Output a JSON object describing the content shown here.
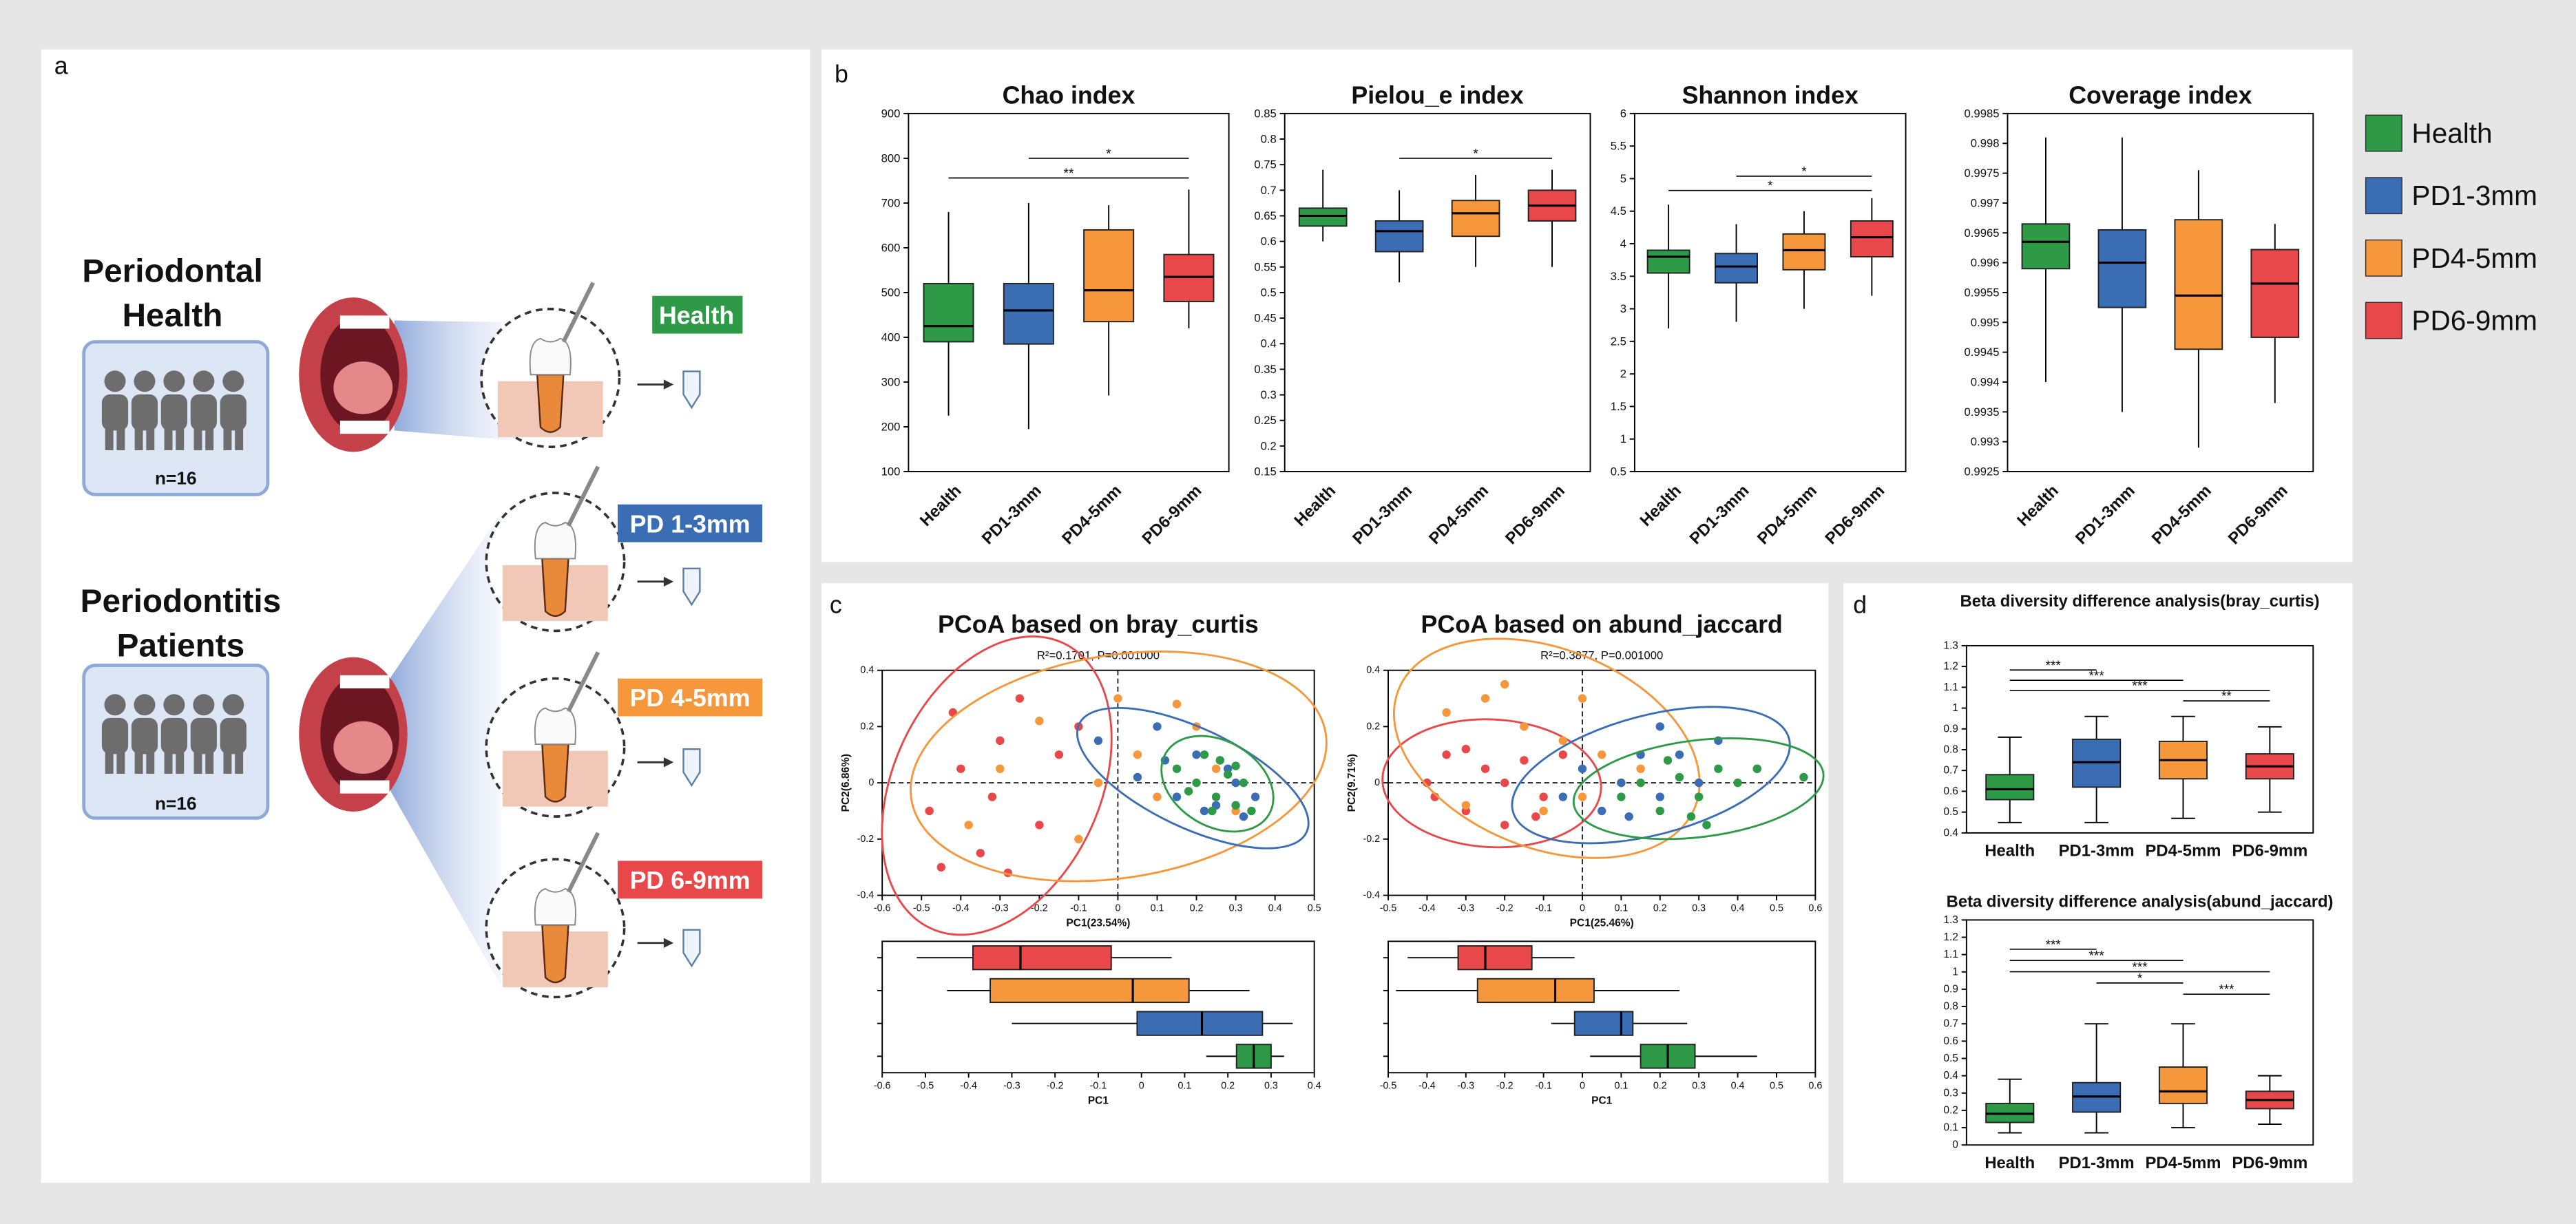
{
  "panel_labels": [
    "a",
    "b",
    "c",
    "d"
  ],
  "diagram": {
    "groups": [
      {
        "title_lines": [
          "Periodontal",
          "Health"
        ],
        "n": "n=16"
      },
      {
        "title_lines": [
          "Periodontitis",
          "Patients"
        ],
        "n": "n=16"
      }
    ],
    "sample_labels": [
      "Health",
      "PD 1-3mm",
      "PD 4-5mm",
      "PD 6-9mm"
    ]
  },
  "legend": [
    {
      "name": "Health",
      "color": "#2e9a47"
    },
    {
      "name": "PD1-3mm",
      "color": "#3b6db5"
    },
    {
      "name": "PD4-5mm",
      "color": "#f5973a"
    },
    {
      "name": "PD6-9mm",
      "color": "#e9484a"
    }
  ],
  "chart_data": [
    {
      "type": "box",
      "title": "Chao index",
      "categories": [
        "Health",
        "PD1-3mm",
        "PD4-5mm",
        "PD6-9mm"
      ],
      "colors": [
        "#2e9a47",
        "#3b6db5",
        "#f5973a",
        "#e9484a"
      ],
      "boxes": [
        {
          "min": 225,
          "q1": 390,
          "median": 425,
          "q3": 520,
          "max": 680
        },
        {
          "min": 195,
          "q1": 385,
          "median": 460,
          "q3": 520,
          "max": 700
        },
        {
          "min": 270,
          "q1": 435,
          "median": 505,
          "q3": 640,
          "max": 695
        },
        {
          "min": 420,
          "q1": 480,
          "median": 535,
          "q3": 585,
          "max": 730
        }
      ],
      "ylim": [
        100,
        900
      ],
      "yticks": [
        100,
        200,
        300,
        400,
        500,
        600,
        700,
        800,
        900
      ],
      "annotations": [
        {
          "text": "*",
          "from": 1,
          "to": 3
        },
        {
          "text": "**",
          "from": 0,
          "to": 3
        }
      ]
    },
    {
      "type": "box",
      "title": "Pielou_e index",
      "categories": [
        "Health",
        "PD1-3mm",
        "PD4-5mm",
        "PD6-9mm"
      ],
      "colors": [
        "#2e9a47",
        "#3b6db5",
        "#f5973a",
        "#e9484a"
      ],
      "boxes": [
        {
          "min": 0.6,
          "q1": 0.63,
          "median": 0.65,
          "q3": 0.665,
          "max": 0.74
        },
        {
          "min": 0.52,
          "q1": 0.58,
          "median": 0.62,
          "q3": 0.64,
          "max": 0.7
        },
        {
          "min": 0.55,
          "q1": 0.61,
          "median": 0.655,
          "q3": 0.68,
          "max": 0.73
        },
        {
          "min": 0.55,
          "q1": 0.64,
          "median": 0.67,
          "q3": 0.7,
          "max": 0.74
        }
      ],
      "ylim": [
        0.15,
        0.85
      ],
      "yticks": [
        0.15,
        0.2,
        0.25,
        0.3,
        0.35,
        0.4,
        0.45,
        0.5,
        0.55,
        0.6,
        0.65,
        0.7,
        0.75,
        0.8,
        0.85
      ],
      "annotations": [
        {
          "text": "*",
          "from": 1,
          "to": 3
        }
      ]
    },
    {
      "type": "box",
      "title": "Shannon index",
      "categories": [
        "Health",
        "PD1-3mm",
        "PD4-5mm",
        "PD6-9mm"
      ],
      "colors": [
        "#2e9a47",
        "#3b6db5",
        "#f5973a",
        "#e9484a"
      ],
      "boxes": [
        {
          "min": 2.7,
          "q1": 3.55,
          "median": 3.8,
          "q3": 3.9,
          "max": 4.6
        },
        {
          "min": 2.8,
          "q1": 3.4,
          "median": 3.65,
          "q3": 3.85,
          "max": 4.3
        },
        {
          "min": 3,
          "q1": 3.6,
          "median": 3.9,
          "q3": 4.15,
          "max": 4.5
        },
        {
          "min": 3.2,
          "q1": 3.8,
          "median": 4.1,
          "q3": 4.35,
          "max": 4.7
        }
      ],
      "ylim": [
        0.5,
        6
      ],
      "yticks": [
        0.5,
        1,
        1.5,
        2,
        2.5,
        3,
        3.5,
        4,
        4.5,
        5,
        5.5,
        6
      ],
      "annotations": [
        {
          "text": "*",
          "from": 1,
          "to": 3
        },
        {
          "text": "*",
          "from": 0,
          "to": 3
        }
      ]
    },
    {
      "type": "box",
      "title": "Coverage index",
      "categories": [
        "Health",
        "PD1-3mm",
        "PD4-5mm",
        "PD6-9mm"
      ],
      "colors": [
        "#2e9a47",
        "#3b6db5",
        "#f5973a",
        "#e9484a"
      ],
      "boxes": [
        {
          "min": 0.994,
          "q1": 0.9959,
          "median": 0.99635,
          "q3": 0.99665,
          "max": 0.9981
        },
        {
          "min": 0.9935,
          "q1": 0.99525,
          "median": 0.996,
          "q3": 0.99655,
          "max": 0.9981
        },
        {
          "min": 0.9929,
          "q1": 0.99455,
          "median": 0.99545,
          "q3": 0.99672,
          "max": 0.99755
        },
        {
          "min": 0.99365,
          "q1": 0.99475,
          "median": 0.99565,
          "q3": 0.99622,
          "max": 0.99665
        }
      ],
      "ylim": [
        0.9925,
        0.9985
      ],
      "yticks": [
        0.9925,
        0.993,
        0.9935,
        0.994,
        0.9945,
        0.995,
        0.9955,
        0.996,
        0.9965,
        0.997,
        0.9975,
        0.998,
        0.9985
      ],
      "annotations": []
    },
    {
      "type": "scatter",
      "title": "PCoA based on bray_curtis",
      "subtitle": "R²=0.1701, P=0.001000",
      "xlabel": "PC1(23.54%)",
      "ylabel": "PC2(6.86%)",
      "xlim": [
        -0.6,
        0.5
      ],
      "xticks": [
        -0.6,
        -0.5,
        -0.4,
        -0.3,
        -0.2,
        -0.1,
        0,
        0.1,
        0.2,
        0.3,
        0.4,
        0.5
      ],
      "ylim": [
        -0.4,
        0.4
      ],
      "yticks": [
        -0.4,
        -0.2,
        0,
        0.2,
        0.4
      ],
      "series": [
        {
          "color": "#e9484a",
          "x": [
            -0.48,
            -0.42,
            -0.4,
            -0.35,
            -0.32,
            -0.3,
            -0.28,
            -0.25,
            -0.2,
            -0.15,
            -0.45,
            -0.1
          ],
          "y": [
            -0.1,
            0.25,
            0.05,
            -0.25,
            -0.05,
            0.15,
            -0.32,
            0.3,
            -0.15,
            0.1,
            -0.3,
            0.2
          ]
        },
        {
          "color": "#f5973a",
          "x": [
            -0.38,
            -0.3,
            -0.2,
            -0.1,
            0,
            0.05,
            0.1,
            0.2,
            0.25,
            0.3,
            -0.05,
            0.15
          ],
          "y": [
            -0.15,
            0.05,
            0.22,
            -0.2,
            0.3,
            0.1,
            -0.05,
            0.2,
            0.05,
            -0.1,
            0,
            0.28
          ]
        },
        {
          "color": "#3b6db5",
          "x": [
            -0.05,
            0.05,
            0.1,
            0.15,
            0.2,
            0.25,
            0.3,
            0.32,
            0.28,
            0.12,
            0.22,
            0.35
          ],
          "y": [
            0.15,
            0.02,
            0.2,
            -0.05,
            0.1,
            -0.08,
            0,
            -0.12,
            0.05,
            0.08,
            -0.1,
            -0.05
          ]
        },
        {
          "color": "#2e9a47",
          "x": [
            0.15,
            0.2,
            0.22,
            0.25,
            0.28,
            0.3,
            0.32,
            0.26,
            0.18,
            0.34,
            0.3,
            0.24
          ],
          "y": [
            0.05,
            0,
            0.1,
            -0.05,
            0.03,
            -0.08,
            0,
            0.08,
            -0.03,
            -0.1,
            0.06,
            -0.1
          ]
        }
      ]
    },
    {
      "type": "hbox",
      "xlabel": "PC1",
      "xlim": [
        -0.6,
        0.4
      ],
      "xticks": [
        -0.6,
        -0.5,
        -0.4,
        -0.3,
        -0.2,
        -0.1,
        0,
        0.1,
        0.2,
        0.3,
        0.4
      ],
      "colors": [
        "#e9484a",
        "#f5973a",
        "#3b6db5",
        "#2e9a47"
      ],
      "boxes": [
        {
          "min": -0.52,
          "q1": -0.39,
          "median": -0.28,
          "q3": -0.07,
          "max": 0.07
        },
        {
          "min": -0.45,
          "q1": -0.35,
          "median": -0.02,
          "q3": 0.11,
          "max": 0.25
        },
        {
          "min": -0.3,
          "q1": -0.01,
          "median": 0.14,
          "q3": 0.28,
          "max": 0.35
        },
        {
          "min": 0.15,
          "q1": 0.22,
          "median": 0.26,
          "q3": 0.3,
          "max": 0.33
        }
      ]
    },
    {
      "type": "scatter",
      "title": "PCoA based on abund_jaccard",
      "subtitle": "R²=0.3877, P=0.001000",
      "xlabel": "PC1(25.46%)",
      "ylabel": "PC2(9.71%)",
      "xlim": [
        -0.5,
        0.6
      ],
      "xticks": [
        -0.5,
        -0.4,
        -0.3,
        -0.2,
        -0.1,
        0,
        0.1,
        0.2,
        0.3,
        0.4,
        0.5,
        0.6
      ],
      "ylim": [
        -0.4,
        0.4
      ],
      "yticks": [
        -0.4,
        -0.2,
        0,
        0.2,
        0.4
      ],
      "series": [
        {
          "color": "#e9484a",
          "x": [
            -0.4,
            -0.35,
            -0.3,
            -0.25,
            -0.2,
            -0.15,
            -0.1,
            -0.3,
            -0.05,
            -0.2,
            -0.38,
            -0.12
          ],
          "y": [
            0,
            0.1,
            -0.1,
            0.05,
            -0.15,
            0.08,
            -0.05,
            0.12,
            0.1,
            0,
            -0.05,
            -0.12
          ]
        },
        {
          "color": "#f5973a",
          "x": [
            -0.35,
            -0.25,
            -0.15,
            -0.05,
            0,
            0.05,
            -0.1,
            0.1,
            -0.2,
            0.15,
            -0.3,
            0
          ],
          "y": [
            0.25,
            0.3,
            0.2,
            0.15,
            -0.05,
            0.1,
            -0.1,
            0,
            0.35,
            0.05,
            -0.08,
            0.3
          ]
        },
        {
          "color": "#3b6db5",
          "x": [
            -0.05,
            0,
            0.05,
            0.1,
            0.15,
            0.2,
            0.25,
            0.3,
            0.35,
            0.45,
            0.12,
            0.2
          ],
          "y": [
            -0.05,
            0.05,
            -0.1,
            0,
            0.1,
            -0.05,
            0.1,
            0,
            0.15,
            0.05,
            -0.12,
            0.2
          ]
        },
        {
          "color": "#2e9a47",
          "x": [
            0.1,
            0.15,
            0.2,
            0.25,
            0.3,
            0.35,
            0.4,
            0.28,
            0.45,
            0.57,
            0.22,
            0.32
          ],
          "y": [
            -0.05,
            0,
            -0.1,
            0.02,
            -0.05,
            0.05,
            0,
            -0.12,
            0.05,
            0.02,
            0.08,
            -0.15
          ]
        }
      ]
    },
    {
      "type": "hbox",
      "xlabel": "PC1",
      "xlim": [
        -0.5,
        0.6
      ],
      "xticks": [
        -0.5,
        -0.4,
        -0.3,
        -0.2,
        -0.1,
        0,
        0.1,
        0.2,
        0.3,
        0.4,
        0.5,
        0.6
      ],
      "colors": [
        "#e9484a",
        "#f5973a",
        "#3b6db5",
        "#2e9a47"
      ],
      "boxes": [
        {
          "min": -0.45,
          "q1": -0.32,
          "median": -0.25,
          "q3": -0.13,
          "max": -0.02
        },
        {
          "min": -0.48,
          "q1": -0.27,
          "median": -0.07,
          "q3": 0.03,
          "max": 0.25
        },
        {
          "min": -0.08,
          "q1": -0.02,
          "median": 0.1,
          "q3": 0.13,
          "max": 0.27
        },
        {
          "min": 0.02,
          "q1": 0.15,
          "median": 0.22,
          "q3": 0.29,
          "max": 0.45
        }
      ]
    },
    {
      "type": "box",
      "title": "Beta diversity difference analysis(bray_curtis)",
      "categories": [
        "Health",
        "PD1-3mm",
        "PD4-5mm",
        "PD6-9mm"
      ],
      "colors": [
        "#2e9a47",
        "#3b6db5",
        "#f5973a",
        "#e9484a"
      ],
      "boxes": [
        {
          "min": 0.45,
          "q1": 0.56,
          "median": 0.61,
          "q3": 0.68,
          "max": 0.86
        },
        {
          "min": 0.45,
          "q1": 0.62,
          "median": 0.74,
          "q3": 0.85,
          "max": 0.96
        },
        {
          "min": 0.47,
          "q1": 0.66,
          "median": 0.75,
          "q3": 0.84,
          "max": 0.96
        },
        {
          "min": 0.5,
          "q1": 0.66,
          "median": 0.72,
          "q3": 0.78,
          "max": 0.91
        }
      ],
      "ylim": [
        0.4,
        1.3
      ],
      "yticks": [
        0.4,
        0.5,
        0.6,
        0.7,
        0.8,
        0.9,
        1,
        1.1,
        1.2,
        1.3
      ],
      "annotations": [
        {
          "text": "***",
          "from": 0,
          "to": 1
        },
        {
          "text": "***",
          "from": 0,
          "to": 2
        },
        {
          "text": "***",
          "from": 0,
          "to": 3
        },
        {
          "text": "**",
          "from": 2,
          "to": 3
        }
      ]
    },
    {
      "type": "box",
      "title": "Beta diversity difference analysis(abund_jaccard)",
      "categories": [
        "Health",
        "PD1-3mm",
        "PD4-5mm",
        "PD6-9mm"
      ],
      "colors": [
        "#2e9a47",
        "#3b6db5",
        "#f5973a",
        "#e9484a"
      ],
      "boxes": [
        {
          "min": 0.07,
          "q1": 0.13,
          "median": 0.18,
          "q3": 0.24,
          "max": 0.38
        },
        {
          "min": 0.07,
          "q1": 0.19,
          "median": 0.28,
          "q3": 0.36,
          "max": 0.7
        },
        {
          "min": 0.1,
          "q1": 0.24,
          "median": 0.31,
          "q3": 0.45,
          "max": 0.7
        },
        {
          "min": 0.12,
          "q1": 0.21,
          "median": 0.26,
          "q3": 0.31,
          "max": 0.4
        }
      ],
      "ylim": [
        0,
        1.3
      ],
      "yticks": [
        0,
        0.1,
        0.2,
        0.3,
        0.4,
        0.5,
        0.6,
        0.7,
        0.8,
        0.9,
        1,
        1.1,
        1.2,
        1.3
      ],
      "annotations": [
        {
          "text": "***",
          "from": 0,
          "to": 1
        },
        {
          "text": "***",
          "from": 0,
          "to": 2
        },
        {
          "text": "***",
          "from": 0,
          "to": 3
        },
        {
          "text": "*",
          "from": 1,
          "to": 2
        },
        {
          "text": "***",
          "from": 2,
          "to": 3
        }
      ]
    }
  ]
}
